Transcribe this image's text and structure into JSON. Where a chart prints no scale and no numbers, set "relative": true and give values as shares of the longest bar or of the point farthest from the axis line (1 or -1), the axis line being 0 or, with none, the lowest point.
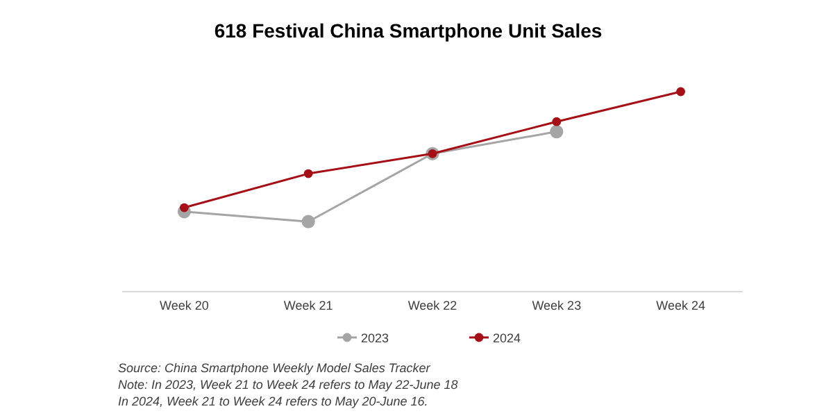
{
  "chart_data": {
    "type": "line",
    "title": "618 Festival China Smartphone Unit Sales",
    "categories": [
      "Week 20",
      "Week 21",
      "Week 22",
      "Week 23",
      "Week 24"
    ],
    "relative": true,
    "marker": "circle",
    "legend": "bottom",
    "grid": false,
    "series": [
      {
        "name": "2023",
        "color": "#a5a5a5",
        "values": [
          0.4,
          0.35,
          0.69,
          0.8,
          null
        ]
      },
      {
        "name": "2024",
        "color": "#a50f15",
        "values": [
          0.42,
          0.59,
          0.69,
          0.85,
          1
        ]
      }
    ],
    "annotations": [
      "Source: China Smartphone Weekly Model Sales Tracker",
      "Note: In 2023, Week 21 to Week 24 refers to May 22-June 18",
      "In 2024, Week 21 to Week 24 refers to May 20-June 16."
    ]
  }
}
